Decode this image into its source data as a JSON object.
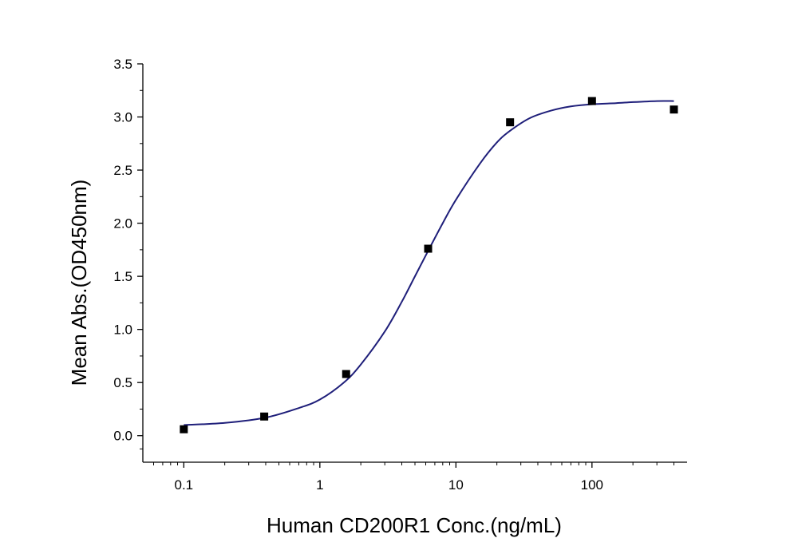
{
  "chart_data": {
    "type": "scatter",
    "xlabel": "Human CD200R1 Conc.(ng/mL)",
    "ylabel": "Mean Abs.(OD450nm)",
    "x_scale": "log",
    "xlim": [
      0.05,
      500
    ],
    "ylim": [
      -0.25,
      3.5
    ],
    "x_ticks": [
      0.1,
      1,
      10,
      100
    ],
    "x_tick_labels": [
      "0.1",
      "1",
      "10",
      "100"
    ],
    "y_ticks": [
      0.0,
      0.5,
      1.0,
      1.5,
      2.0,
      2.5,
      3.0,
      3.5
    ],
    "y_tick_labels": [
      "0.0",
      "0.5",
      "1.0",
      "1.5",
      "2.0",
      "2.5",
      "3.0",
      "3.5"
    ],
    "grid": false,
    "series": [
      {
        "kind": "points",
        "marker": "square",
        "color": "#000000",
        "x": [
          0.1,
          0.39,
          1.56,
          6.25,
          25,
          100,
          400
        ],
        "y": [
          0.06,
          0.18,
          0.58,
          1.76,
          2.95,
          3.15,
          3.07
        ]
      },
      {
        "kind": "fit-curve",
        "color": "#1f1f7a",
        "x": [
          0.1,
          0.2,
          0.4,
          0.7,
          1.0,
          1.5,
          2.0,
          3.0,
          4.0,
          5.0,
          6.25,
          8.0,
          10,
          15,
          20,
          25,
          35,
          50,
          70,
          100,
          150,
          200,
          300,
          400
        ],
        "y": [
          0.1,
          0.12,
          0.17,
          0.26,
          0.34,
          0.5,
          0.67,
          0.98,
          1.26,
          1.5,
          1.74,
          2.0,
          2.22,
          2.56,
          2.76,
          2.87,
          2.99,
          3.06,
          3.1,
          3.12,
          3.13,
          3.14,
          3.15,
          3.15
        ]
      }
    ]
  }
}
